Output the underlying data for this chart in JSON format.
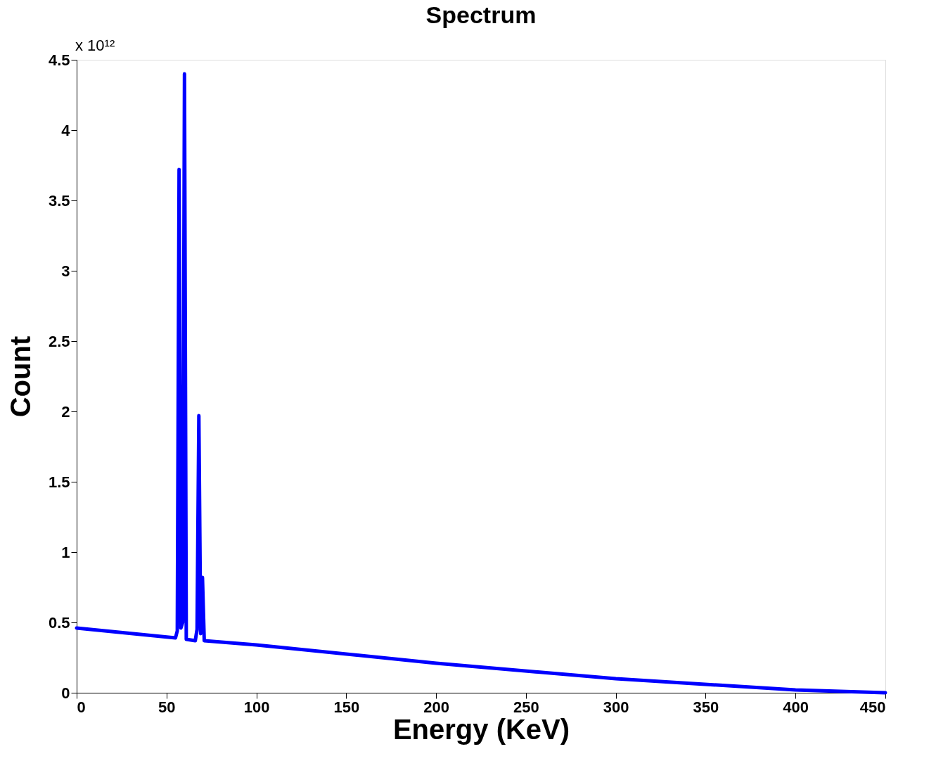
{
  "chart_data": {
    "type": "line",
    "title": "Spectrum",
    "xlabel": "Energy (KeV)",
    "ylabel": "Count",
    "annotations": [
      "x 10¹²"
    ],
    "x": [
      0,
      55,
      56,
      57,
      58,
      59,
      60,
      61,
      66,
      67,
      68,
      69,
      70,
      71,
      100,
      200,
      300,
      400,
      450
    ],
    "series": [
      {
        "color": "#0000ff",
        "values": [
          0.46,
          0.39,
          0.44,
          3.72,
          0.46,
          0.5,
          4.4,
          0.38,
          0.37,
          0.45,
          1.97,
          0.42,
          0.82,
          0.37,
          0.34,
          0.21,
          0.1,
          0.02,
          0
        ]
      }
    ],
    "xlim": [
      0,
      450
    ],
    "xticks": [
      0,
      50,
      100,
      150,
      200,
      250,
      300,
      350,
      400,
      450
    ],
    "ylim": [
      0,
      4.5
    ],
    "yticks": [
      0,
      0.5,
      1,
      1.5,
      2,
      2.5,
      3,
      3.5,
      4,
      4.5
    ],
    "grid": false,
    "legend": false,
    "marker": "none",
    "line_style": "solid"
  }
}
